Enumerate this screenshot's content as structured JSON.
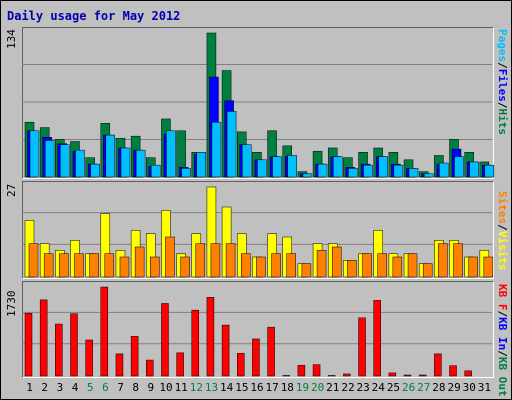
{
  "chart_data": [
    {
      "type": "bar",
      "title": "Daily usage for May 2012",
      "panel": "top",
      "max_label": "134",
      "legend": [
        "Pages",
        "Files",
        "Hits"
      ],
      "colors": {
        "Hits": "#008040",
        "Files": "#0000ff",
        "Pages": "#00bfff"
      },
      "ylim": [
        0,
        134
      ],
      "categories": [
        "1",
        "2",
        "3",
        "4",
        "5",
        "6",
        "7",
        "8",
        "9",
        "10",
        "11",
        "12",
        "13",
        "14",
        "15",
        "16",
        "17",
        "18",
        "19",
        "20",
        "21",
        "22",
        "23",
        "24",
        "25",
        "26",
        "27",
        "28",
        "29",
        "30",
        "31"
      ],
      "series": [
        {
          "name": "Hits",
          "values": [
            51,
            46,
            35,
            33,
            18,
            50,
            36,
            38,
            18,
            54,
            43,
            23,
            134,
            99,
            42,
            23,
            43,
            29,
            5,
            24,
            27,
            18,
            23,
            27,
            23,
            16,
            5,
            20,
            35,
            23,
            14
          ]
        },
        {
          "name": "Files",
          "values": [
            43,
            37,
            31,
            24,
            12,
            39,
            27,
            25,
            10,
            40,
            9,
            21,
            93,
            71,
            30,
            16,
            19,
            19,
            3,
            12,
            19,
            9,
            12,
            19,
            12,
            8,
            3,
            12,
            26,
            14,
            11
          ]
        },
        {
          "name": "Pages",
          "values": [
            43,
            34,
            30,
            25,
            12,
            39,
            27,
            25,
            11,
            43,
            8,
            23,
            51,
            61,
            30,
            16,
            19,
            20,
            3,
            12,
            19,
            8,
            11,
            19,
            11,
            8,
            3,
            13,
            19,
            14,
            11
          ]
        }
      ]
    },
    {
      "type": "bar",
      "panel": "middle",
      "max_label": "27",
      "legend": [
        "Sites",
        "Visits"
      ],
      "colors": {
        "Visits": "#ffff00",
        "Sites": "#ff8000"
      },
      "ylim": [
        0,
        27
      ],
      "categories": [
        "1",
        "2",
        "3",
        "4",
        "5",
        "6",
        "7",
        "8",
        "9",
        "10",
        "11",
        "12",
        "13",
        "14",
        "15",
        "16",
        "17",
        "18",
        "19",
        "20",
        "21",
        "22",
        "23",
        "24",
        "25",
        "26",
        "27",
        "28",
        "29",
        "30",
        "31"
      ],
      "series": [
        {
          "name": "Visits",
          "values": [
            17,
            10,
            8,
            11,
            7,
            19,
            8,
            14,
            13,
            20,
            7,
            13,
            27,
            21,
            13,
            6,
            13,
            12,
            4,
            10,
            10,
            5,
            7,
            14,
            7,
            7,
            4,
            11,
            11,
            6,
            8
          ]
        },
        {
          "name": "Sites",
          "values": [
            10,
            7,
            7,
            7,
            7,
            7,
            6,
            9,
            6,
            12,
            6,
            10,
            10,
            10,
            7,
            6,
            7,
            7,
            4,
            8,
            9,
            5,
            7,
            7,
            6,
            7,
            4,
            10,
            10,
            6,
            6
          ]
        }
      ]
    },
    {
      "type": "bar",
      "panel": "bottom",
      "max_label": "1730",
      "legend": [
        "KB F",
        "KB In",
        "KB Out"
      ],
      "colors": {
        "KB F": "#ff0000",
        "KB In": "#0000ff",
        "KB Out": "#008040"
      },
      "ylim": [
        0,
        1730
      ],
      "categories": [
        "1",
        "2",
        "3",
        "4",
        "5",
        "6",
        "7",
        "8",
        "9",
        "10",
        "11",
        "12",
        "13",
        "14",
        "15",
        "16",
        "17",
        "18",
        "19",
        "20",
        "21",
        "22",
        "23",
        "24",
        "25",
        "26",
        "27",
        "28",
        "29",
        "30",
        "31"
      ],
      "series": [
        {
          "name": "KB F",
          "values": [
            1220,
            1480,
            1010,
            1210,
            700,
            1730,
            430,
            770,
            310,
            1410,
            450,
            1280,
            1530,
            990,
            440,
            720,
            950,
            10,
            210,
            220,
            10,
            40,
            1130,
            1470,
            60,
            20,
            20,
            430,
            200,
            100,
            0
          ]
        }
      ]
    }
  ],
  "day_colors": {
    "weekday": "#000000",
    "weekend": "#008040"
  },
  "weekend_days": [
    "5",
    "6",
    "12",
    "13",
    "19",
    "20",
    "26",
    "27"
  ]
}
